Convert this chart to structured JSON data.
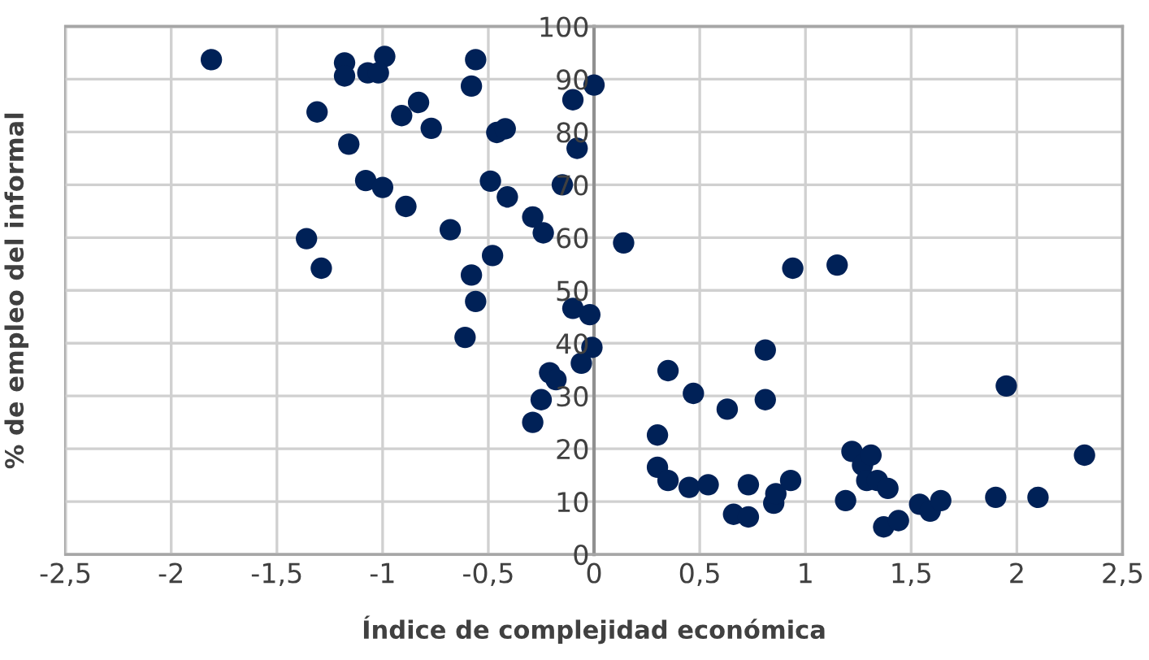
{
  "chart_data": {
    "type": "scatter",
    "xlabel": "Índice de complejidad económica",
    "ylabel": "% de empleo del informal",
    "series": [
      {
        "color": "#002157",
        "x": [
          -1.81,
          -1.18,
          -1.18,
          -0.99,
          -1.07,
          -1.02,
          -1.31,
          -1.16,
          -0.91,
          -0.83,
          -0.77,
          -1.08,
          -1.0,
          -0.89,
          -1.36,
          -1.29,
          -0.68,
          -0.56,
          -0.58,
          -0.46,
          -0.42,
          -0.49,
          -0.41,
          -0.29,
          -0.24,
          -0.15,
          -0.48,
          -0.58,
          -0.56,
          -0.1,
          0.0,
          -0.08,
          0.14,
          0.94,
          1.15,
          -0.61,
          -0.1,
          -0.02,
          -0.01,
          -0.06,
          -0.21,
          -0.18,
          -0.25,
          -0.29,
          0.35,
          0.47,
          0.63,
          0.81,
          0.81,
          0.3,
          0.3,
          0.35,
          0.45,
          0.54,
          0.66,
          0.73,
          0.73,
          0.85,
          0.86,
          0.93,
          1.19,
          1.22,
          1.27,
          1.31,
          1.29,
          1.34,
          1.39,
          1.37,
          1.44,
          1.54,
          1.59,
          1.64,
          1.9,
          2.1,
          1.95,
          2.32
        ],
        "values": [
          93.7,
          93.1,
          90.6,
          94.3,
          91.2,
          91.2,
          83.8,
          77.7,
          83.1,
          85.6,
          80.7,
          70.8,
          69.5,
          65.9,
          59.8,
          54.2,
          61.5,
          93.7,
          88.7,
          79.9,
          80.6,
          70.7,
          67.7,
          63.9,
          60.9,
          70.0,
          56.6,
          52.9,
          47.9,
          86.1,
          88.9,
          76.9,
          59.0,
          54.2,
          54.8,
          41.1,
          46.6,
          45.4,
          39.2,
          36.2,
          34.4,
          33.1,
          29.3,
          25.0,
          34.8,
          30.5,
          27.5,
          38.7,
          29.3,
          22.6,
          16.5,
          14.0,
          12.7,
          13.2,
          7.6,
          7.1,
          13.2,
          9.7,
          11.5,
          14.0,
          10.2,
          19.5,
          16.9,
          18.8,
          14.0,
          14.0,
          12.5,
          5.2,
          6.4,
          9.5,
          8.2,
          10.2,
          10.8,
          10.8,
          31.9,
          18.8
        ]
      }
    ],
    "xlim": [
      -2.5,
      2.5
    ],
    "xticks": [
      {
        "value": -2.5,
        "label": "-2,5"
      },
      -2,
      {
        "value": -1.5,
        "label": "-1,5"
      },
      -1,
      {
        "value": -0.5,
        "label": "-0,5"
      },
      0,
      {
        "value": 0.5,
        "label": "0,5"
      },
      1,
      {
        "value": 1.5,
        "label": "1,5"
      },
      2,
      {
        "value": 2.5,
        "label": "2,5"
      }
    ],
    "ylim": [
      0,
      100
    ],
    "yticks": [
      0,
      10,
      20,
      30,
      40,
      50,
      60,
      70,
      80,
      90,
      100
    ],
    "grid": true,
    "marker": "circle"
  }
}
